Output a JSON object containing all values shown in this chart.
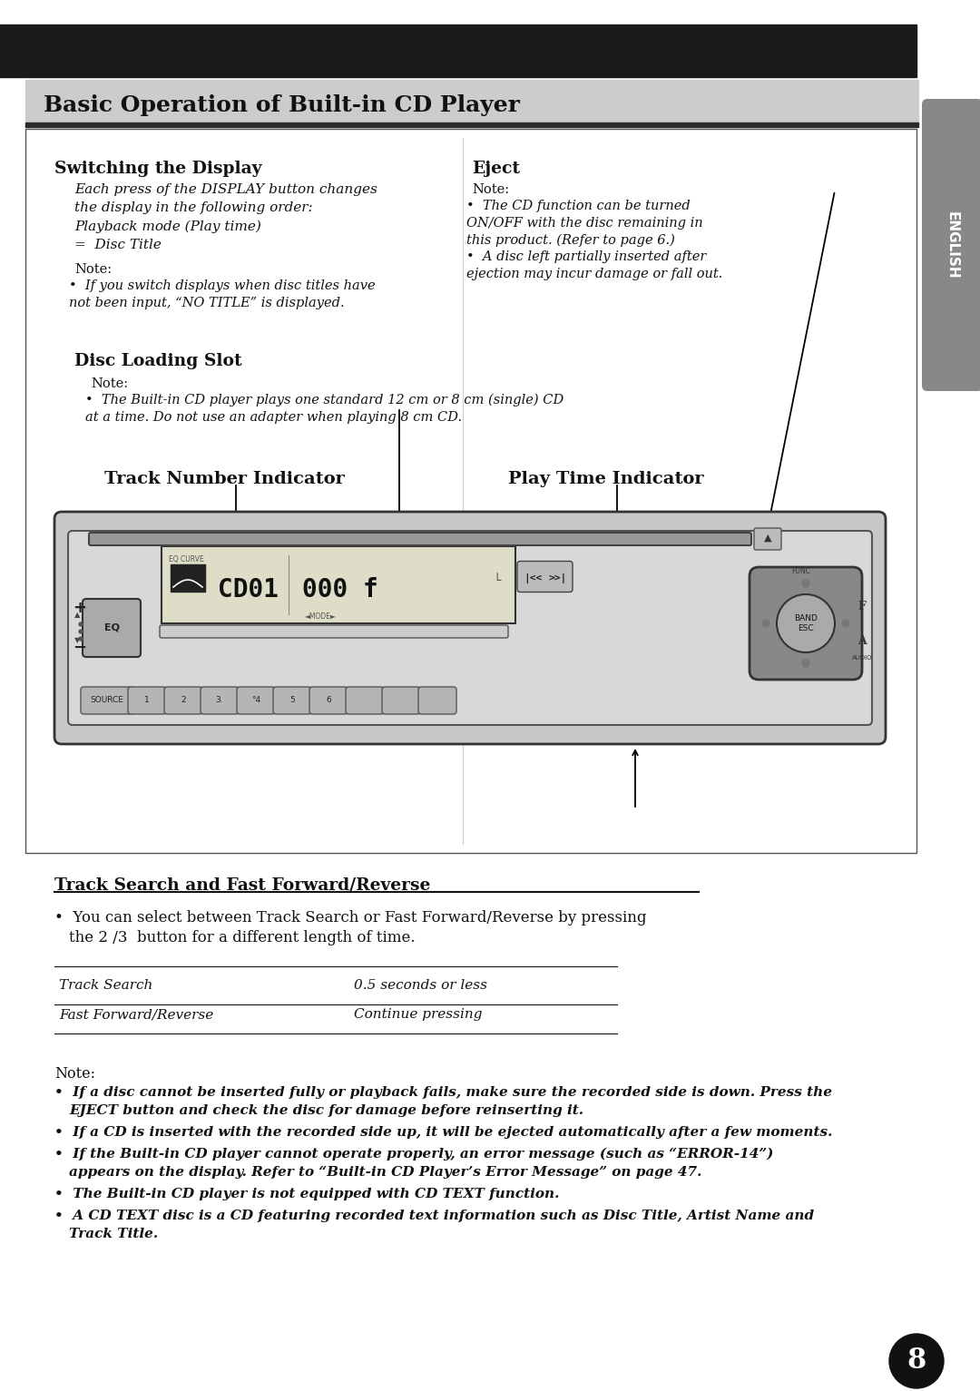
{
  "bg_color": "#ffffff",
  "header_bar_color": "#1a1a1a",
  "side_tab_color": "#888888",
  "title_bg_color": "#cccccc",
  "title_text": "Basic Operation of Built-in CD Player",
  "section1_title": "Switching the Display",
  "section1_body": "Each press of the DISPLAY button changes\nthe display in the following order:\nPlayback mode (Play time)\n=  Disc Title",
  "section1_note_label": "Note:",
  "section1_note_bullet": "If you switch displays when disc titles have\nnot been input, “NO TITLE” is displayed.",
  "section2_title": "Eject",
  "section2_note_label": "Note:",
  "section2_note_b1": "The CD function can be turned\nON/OFF with the disc remaining in\nthis product. (Refer to page 6.)",
  "section2_note_b2": "A disc left partially inserted after\nejection may incur damage or fall out.",
  "section3_title": "Disc Loading Slot",
  "section3_note_label": "Note:",
  "section3_note_bullet": "The Built-in CD player plays one standard 12 cm or 8 cm (single) CD\nat a time. Do not use an adapter when playing 8 cm CD.",
  "label_track_number": "Track Number Indicator",
  "label_play_time": "Play Time Indicator",
  "section4_title": "Track Search and Fast Forward/Reverse",
  "table_col1": [
    "Track Search",
    "Fast Forward/Reverse"
  ],
  "table_col2": [
    "0.5 seconds or less",
    "Continue pressing"
  ],
  "bottom_note_label": "Note:",
  "bottom_note_b1": "If a disc cannot be inserted fully or playback fails, make sure the recorded side is down. Press the\nEJECT button and check the disc for damage before reinserting it.",
  "bottom_note_b2": "If a CD is inserted with the recorded side up, it will be ejected automatically after a few moments.",
  "bottom_note_b3": "If the Built-in CD player cannot operate properly, an error message (such as “ERROR-14”)\nappears on the display. Refer to “Built-in CD Player’s Error Message” on page 47.",
  "bottom_note_b4": "The Built-in CD player is not equipped with CD TEXT function.",
  "bottom_note_b5": "A CD TEXT disc is a CD featuring recorded text information such as Disc Title, Artist Name and\nTrack Title.",
  "page_number": "8",
  "english_tab": "ENGLISH"
}
